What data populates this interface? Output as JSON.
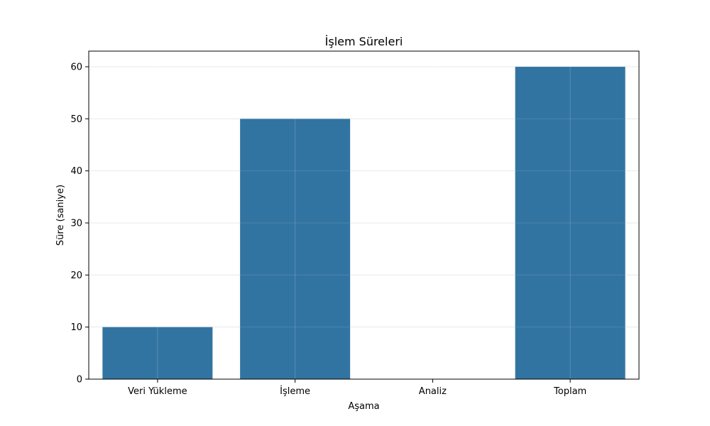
{
  "chart_data": {
    "type": "bar",
    "title": "İşlem Süreleri",
    "xlabel": "Aşama",
    "ylabel": "Süre (saniye)",
    "categories": [
      "Veri Yükleme",
      "İşleme",
      "Analiz",
      "Toplam"
    ],
    "values": [
      10,
      50,
      0,
      60
    ],
    "ylim": [
      0,
      63
    ],
    "yticks": [
      0,
      10,
      20,
      30,
      40,
      50,
      60
    ],
    "ytick_labels": [
      "0",
      "10",
      "20",
      "30",
      "40",
      "50",
      "60"
    ],
    "grid": true,
    "legend": "none",
    "bar_color": "#3274a1",
    "grid_color": "#e6e6e6",
    "axis_color": "#000000"
  }
}
